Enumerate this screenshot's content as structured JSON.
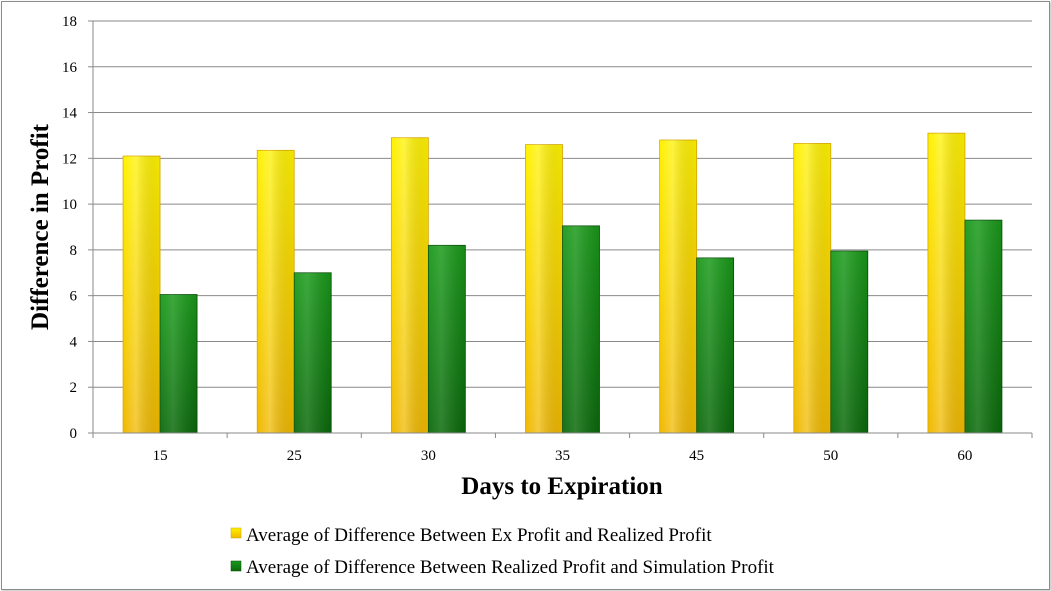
{
  "chart_data": {
    "type": "bar",
    "categories": [
      "15",
      "25",
      "30",
      "35",
      "45",
      "50",
      "60"
    ],
    "series": [
      {
        "name": "Average of Difference Between Ex Profit and Realized Profit",
        "values": [
          12.1,
          12.35,
          12.9,
          12.6,
          12.8,
          12.65,
          13.1
        ],
        "color": "#f5c400"
      },
      {
        "name": "Average of Difference Between Realized Profit and Simulation Profit",
        "values": [
          6.05,
          7.0,
          8.2,
          9.05,
          7.65,
          7.95,
          9.3
        ],
        "color": "#0a7a0a"
      }
    ],
    "xlabel": "Days to Expiration",
    "ylabel": "Difference in Profit",
    "ylim": [
      0,
      18
    ],
    "yticks": [
      0,
      2,
      4,
      6,
      8,
      10,
      12,
      14,
      16,
      18
    ],
    "grid": true,
    "legend_position": "bottom"
  }
}
